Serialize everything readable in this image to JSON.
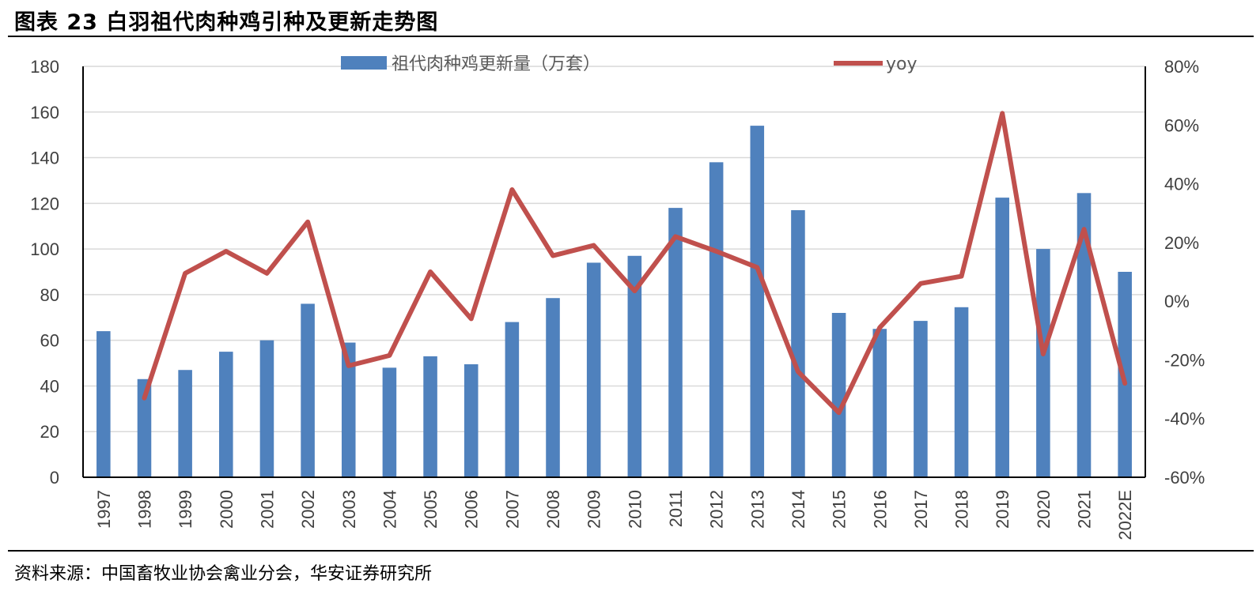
{
  "header": {
    "title": "图表 23  白羽祖代肉种鸡引种及更新走势图"
  },
  "footer": {
    "source": "资料来源：中国畜牧业协会禽业分会，华安证券研究所"
  },
  "chart_data": {
    "type": "bar",
    "categories": [
      "1997",
      "1998",
      "1999",
      "2000",
      "2001",
      "2002",
      "2003",
      "2004",
      "2005",
      "2006",
      "2007",
      "2008",
      "2009",
      "2010",
      "2011",
      "2012",
      "2013",
      "2014",
      "2015",
      "2016",
      "2017",
      "2018",
      "2019",
      "2020",
      "2021",
      "2022E"
    ],
    "series": [
      {
        "name": "祖代肉种鸡更新量（万套）",
        "type": "bar",
        "axis": "left",
        "color": "#4F81BD",
        "values": [
          64,
          43,
          47,
          55,
          60,
          76,
          59,
          48,
          53,
          49.5,
          68,
          78.5,
          94,
          97,
          118,
          138,
          154,
          117,
          72,
          65,
          68.5,
          74.5,
          122.5,
          100,
          124.5,
          90
        ]
      },
      {
        "name": "yoy",
        "type": "line",
        "axis": "right",
        "color": "#C0504D",
        "values": [
          null,
          -33,
          9.5,
          17,
          9.5,
          27,
          -22,
          -18.5,
          10,
          -6,
          38,
          15.5,
          19,
          3.5,
          22,
          17,
          11.5,
          -24,
          -38,
          -9,
          6,
          8.5,
          64,
          -18,
          24.5,
          -28
        ]
      }
    ],
    "y_left": {
      "ylim": [
        0,
        180
      ],
      "ticks": [
        0,
        20,
        40,
        60,
        80,
        100,
        120,
        140,
        160,
        180
      ]
    },
    "y_right": {
      "ylim": [
        -60,
        80
      ],
      "ticks": [
        -60,
        -40,
        -20,
        0,
        20,
        40,
        60,
        80
      ],
      "tick_labels": [
        "-60%",
        "-40%",
        "-20%",
        "0%",
        "20%",
        "40%",
        "60%",
        "80%"
      ]
    },
    "grid": true,
    "legend_position": "top"
  }
}
